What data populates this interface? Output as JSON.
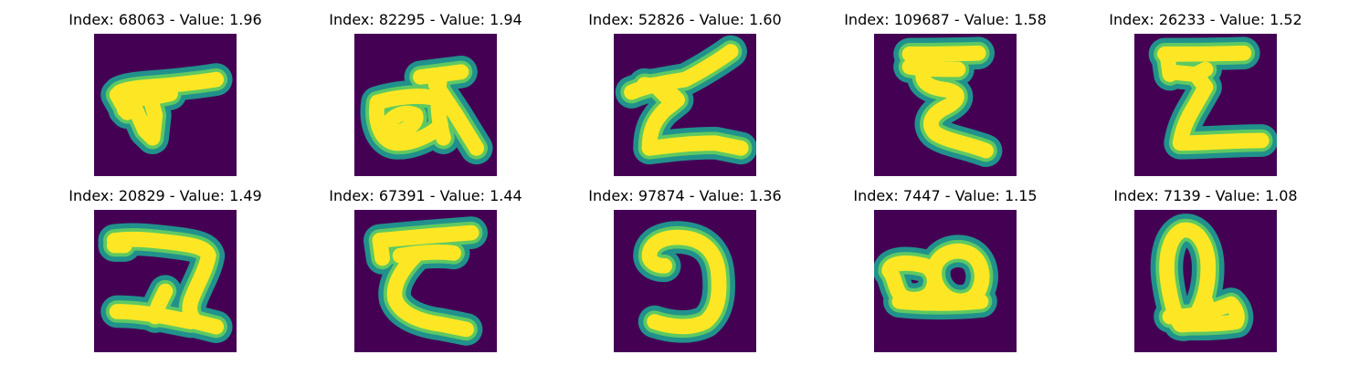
{
  "colors": {
    "background": "#440154",
    "edge": "#21918c",
    "mid": "#5ec962",
    "stroke": "#fde725",
    "title": "#000000"
  },
  "panels": [
    {
      "title": "Index: 68063 - Value: 1.96",
      "glyph": "glyph-68063-icon"
    },
    {
      "title": "Index: 82295 - Value: 1.94",
      "glyph": "glyph-82295-icon"
    },
    {
      "title": "Index: 52826 - Value: 1.60",
      "glyph": "glyph-52826-icon"
    },
    {
      "title": "Index: 109687 - Value: 1.58",
      "glyph": "glyph-109687-icon"
    },
    {
      "title": "Index: 26233 - Value: 1.52",
      "glyph": "glyph-26233-icon"
    },
    {
      "title": "Index: 20829 - Value: 1.49",
      "glyph": "glyph-20829-icon"
    },
    {
      "title": "Index: 67391 - Value: 1.44",
      "glyph": "glyph-67391-icon"
    },
    {
      "title": "Index: 97874 - Value: 1.36",
      "glyph": "glyph-97874-icon"
    },
    {
      "title": "Index: 7447 - Value: 1.15",
      "glyph": "glyph-7447-icon"
    },
    {
      "title": "Index: 7139 - Value: 1.08",
      "glyph": "glyph-7139-icon"
    }
  ]
}
